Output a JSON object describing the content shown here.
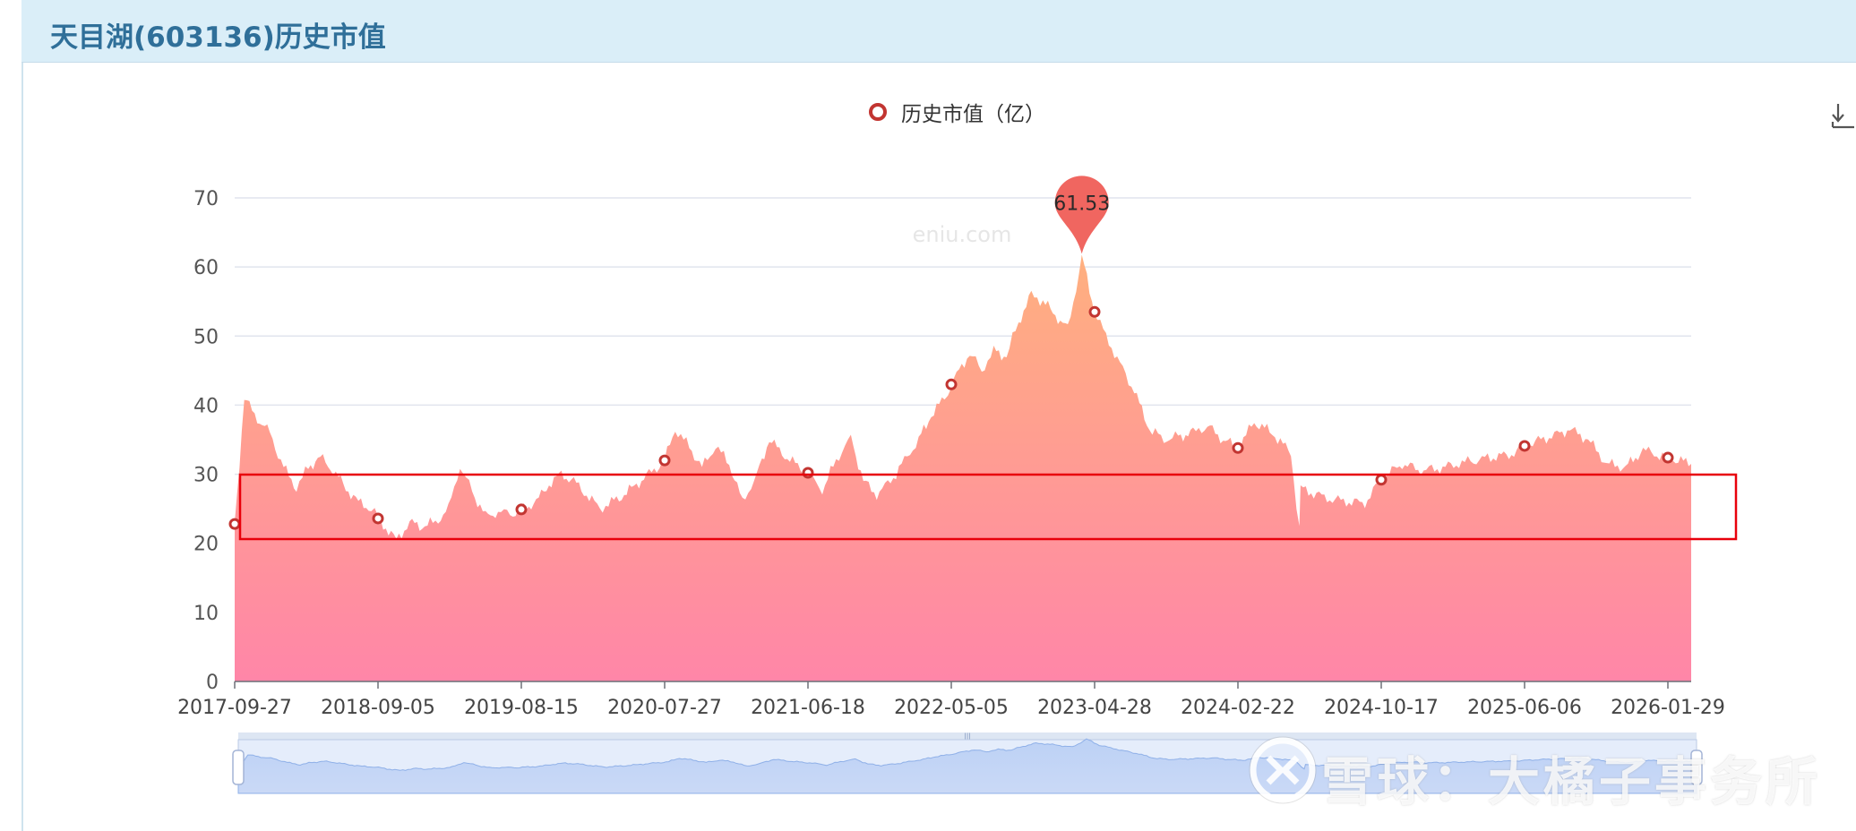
{
  "header": {
    "title": "天目湖(603136)历史市值"
  },
  "legend": {
    "label": "历史市值（亿）"
  },
  "watermark": {
    "site": "eniu.com",
    "brand": "雪球：大橘子事务所"
  },
  "icons": {
    "download": "download-icon",
    "legend_marker": "hollow-circle-icon",
    "xueqiu_logo": "xueqiu-logo-icon"
  },
  "colors": {
    "accent": "#c23531",
    "area_top": "#ffb07f",
    "area_bottom": "#ff86a8",
    "highlight": "#e8000b",
    "pin": "#f06660"
  },
  "chart_data": {
    "type": "area",
    "title": "",
    "xlabel": "",
    "ylabel": "",
    "ylim": [
      0,
      70
    ],
    "yticks": [
      0,
      10,
      20,
      30,
      40,
      50,
      60,
      70
    ],
    "x_tick_labels": [
      "2017-09-27",
      "2018-09-05",
      "2019-08-15",
      "2020-07-27",
      "2021-06-18",
      "2022-05-05",
      "2023-04-28",
      "2024-02-22",
      "2024-10-17",
      "2025-06-06",
      "2026-01-29"
    ],
    "grid": true,
    "legend_position": "top-center",
    "series": [
      {
        "name": "历史市值（亿）",
        "dates": [
          "2017-09-27",
          "2017-10-20",
          "2017-11-20",
          "2017-12-20",
          "2018-01-22",
          "2018-02-22",
          "2018-03-22",
          "2018-04-20",
          "2018-05-21",
          "2018-06-20",
          "2018-07-20",
          "2018-08-20",
          "2018-09-05",
          "2018-10-19",
          "2018-11-20",
          "2018-12-20",
          "2019-01-21",
          "2019-02-21",
          "2019-03-21",
          "2019-04-19",
          "2019-05-21",
          "2019-06-20",
          "2019-07-19",
          "2019-08-15",
          "2019-09-20",
          "2019-10-21",
          "2019-11-20",
          "2019-12-20",
          "2020-01-20",
          "2020-02-21",
          "2020-03-20",
          "2020-04-20",
          "2020-05-20",
          "2020-06-19",
          "2020-07-27",
          "2020-08-20",
          "2020-09-21",
          "2020-10-20",
          "2020-11-20",
          "2020-12-21",
          "2021-01-20",
          "2021-02-22",
          "2021-03-22",
          "2021-04-20",
          "2021-05-20",
          "2021-06-18",
          "2021-07-20",
          "2021-08-20",
          "2021-09-22",
          "2021-10-20",
          "2021-11-19",
          "2021-12-20",
          "2022-01-20",
          "2022-02-21",
          "2022-03-21",
          "2022-04-20",
          "2022-05-05",
          "2022-06-20",
          "2022-07-20",
          "2022-08-19",
          "2022-09-20",
          "2022-10-20",
          "2022-11-21",
          "2022-12-20",
          "2023-01-20",
          "2023-02-20",
          "2023-03-13",
          "2023-03-27",
          "2023-04-28",
          "2023-05-22",
          "2023-06-20",
          "2023-07-20",
          "2023-08-21",
          "2023-09-20",
          "2023-10-20",
          "2023-11-20",
          "2023-12-20",
          "2024-01-22",
          "2024-02-22",
          "2024-03-20",
          "2024-04-19",
          "2024-05-20",
          "2024-06-03",
          "2024-06-05",
          "2024-07-19",
          "2024-08-20",
          "2024-09-20",
          "2024-10-17",
          "2024-11-20",
          "2024-12-20",
          "2025-01-20",
          "2025-02-20",
          "2025-03-20",
          "2025-04-21",
          "2025-05-20",
          "2025-06-06",
          "2025-07-21",
          "2025-08-20",
          "2025-09-19",
          "2025-10-20",
          "2025-11-20",
          "2025-12-19",
          "2026-01-29",
          "2026-02-27"
        ],
        "values": [
          22.8,
          41.0,
          38.0,
          36.0,
          31.0,
          28.0,
          31.0,
          32.5,
          30.5,
          28.0,
          26.0,
          25.0,
          23.6,
          20.5,
          23.0,
          22.5,
          23.0,
          25.0,
          31.0,
          27.5,
          24.0,
          24.5,
          24.2,
          24.9,
          26.0,
          28.5,
          30.0,
          29.0,
          27.0,
          25.0,
          26.0,
          27.0,
          28.5,
          30.0,
          32.0,
          36.5,
          34.0,
          31.0,
          34.0,
          31.5,
          26.0,
          30.0,
          35.0,
          33.0,
          31.5,
          30.2,
          27.5,
          32.0,
          35.5,
          29.0,
          27.0,
          29.0,
          32.0,
          35.0,
          38.5,
          41.0,
          43.0,
          47.5,
          45.0,
          48.0,
          47.0,
          52.0,
          56.0,
          55.0,
          53.0,
          51.0,
          57.0,
          61.53,
          53.5,
          50.0,
          46.0,
          42.0,
          36.5,
          35.0,
          35.5,
          36.0,
          37.0,
          35.0,
          33.8,
          37.5,
          36.0,
          33.0,
          22.0,
          28.0,
          26.5,
          26.0,
          25.8,
          29.2,
          31.5,
          30.5,
          30.8,
          31.5,
          32.0,
          32.5,
          33.0,
          34.1,
          35.5,
          36.5,
          35.0,
          31.5,
          31.0,
          33.5,
          32.4,
          31.5
        ]
      }
    ],
    "markers": [
      {
        "date": "2017-09-27",
        "value": 22.8
      },
      {
        "date": "2018-09-05",
        "value": 23.6
      },
      {
        "date": "2019-08-15",
        "value": 24.9
      },
      {
        "date": "2020-07-27",
        "value": 32.0
      },
      {
        "date": "2021-06-18",
        "value": 30.2
      },
      {
        "date": "2022-05-05",
        "value": 43.0
      },
      {
        "date": "2023-04-28",
        "value": 53.5
      },
      {
        "date": "2024-02-22",
        "value": 33.8
      },
      {
        "date": "2024-10-17",
        "value": 29.2
      },
      {
        "date": "2025-06-06",
        "value": 34.1
      },
      {
        "date": "2026-01-29",
        "value": 32.4
      }
    ],
    "max_point": {
      "date": "2023-03-27",
      "value": 61.53,
      "label": "61.53"
    },
    "highlight_band": {
      "y_from": 21,
      "y_to": 30
    }
  }
}
